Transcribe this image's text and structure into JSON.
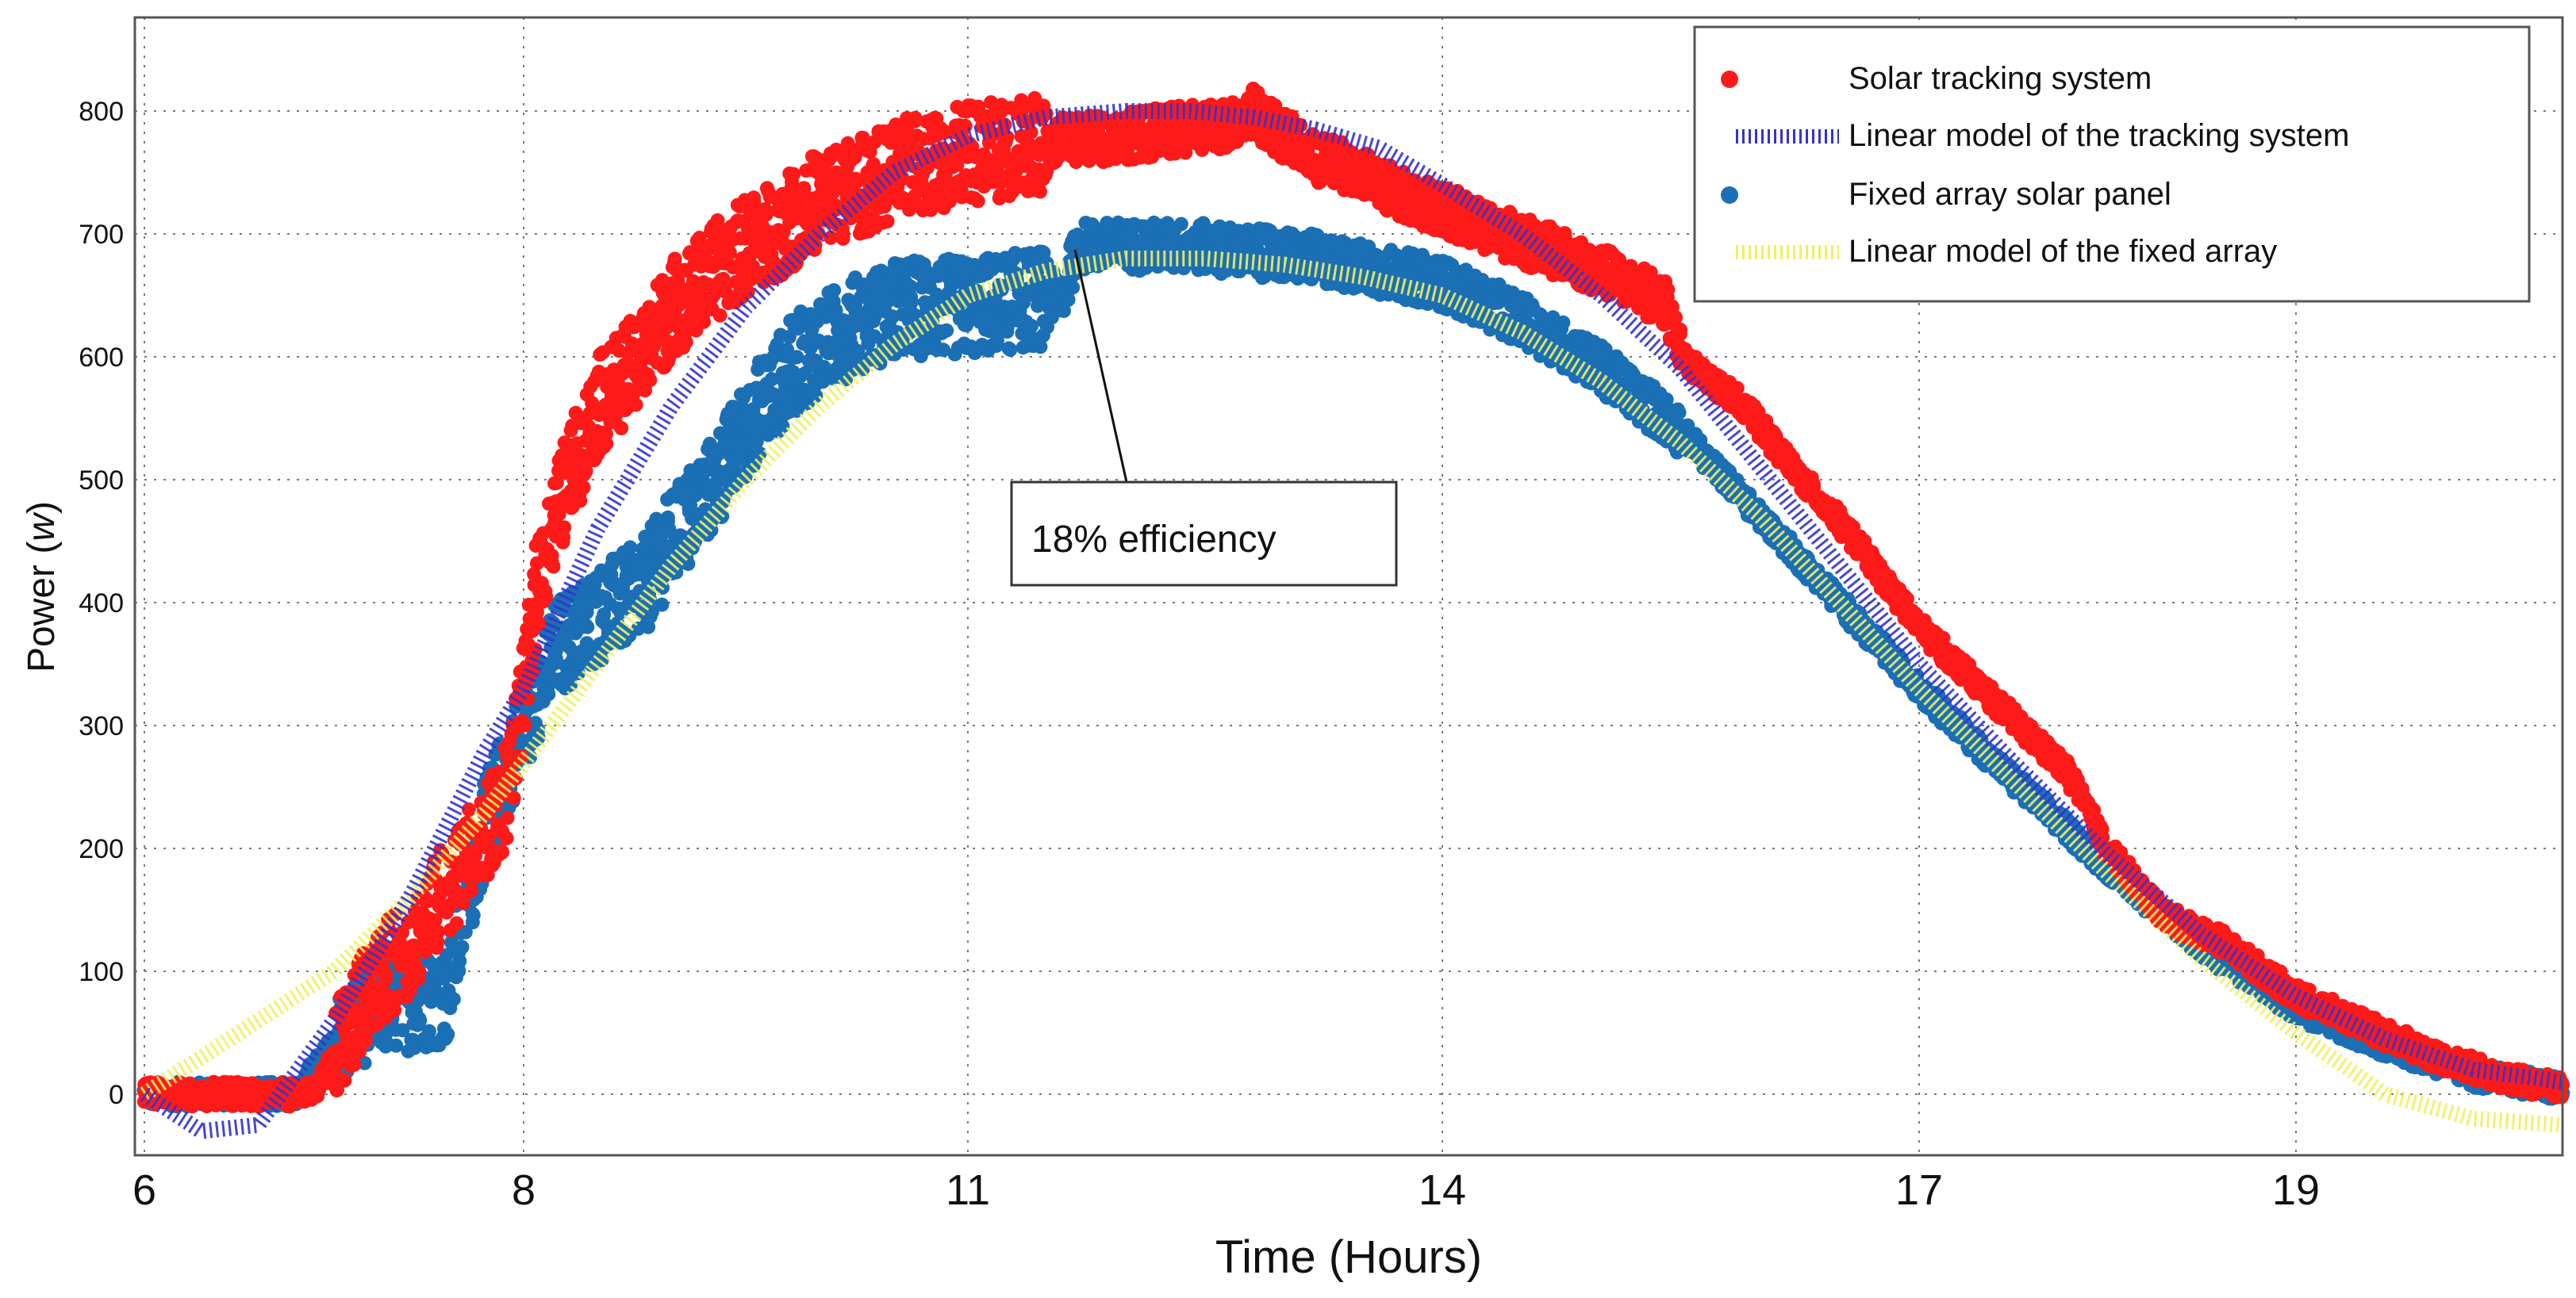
{
  "chart_data": {
    "type": "scatter",
    "title": "",
    "xlabel": "Time (Hours)",
    "ylabel_main": "Power (",
    "ylabel_unit": "w",
    "ylabel_close": ")",
    "xlim": [
      6,
      20.5
    ],
    "ylim": [
      -40,
      850
    ],
    "xticks": [
      6,
      8,
      11,
      14,
      17,
      19
    ],
    "xtick_labels": [
      "6",
      "8",
      "11",
      "14",
      "17",
      "19"
    ],
    "yticks": [
      0,
      100,
      200,
      300,
      400,
      500,
      600,
      700,
      800
    ],
    "ytick_labels": [
      "0",
      "100",
      "200",
      "300",
      "400",
      "500",
      "600",
      "700",
      "800"
    ],
    "grid": true,
    "legend_position": "top-right",
    "annotation": {
      "text": "18% efficiency",
      "target_x": 11.4,
      "target_y": 690
    },
    "series": [
      {
        "name": "Solar tracking system",
        "kind": "scatter",
        "color": "#ff1a1a",
        "x": [
          6.0,
          6.5,
          6.9,
          7.0,
          7.2,
          7.4,
          7.6,
          7.8,
          7.9,
          8.0,
          8.1,
          8.3,
          8.5,
          8.8,
          9.0,
          9.3,
          9.5,
          9.8,
          10.0,
          10.3,
          10.6,
          11.0,
          11.3,
          11.6,
          12.0,
          12.4,
          12.7,
          12.8,
          13.0,
          13.2,
          13.4,
          13.6,
          14.0,
          14.5,
          15.0,
          15.4,
          15.5,
          15.9,
          16.2,
          16.6,
          17.0,
          17.4,
          17.8,
          18.0,
          18.3,
          18.6,
          19.0,
          19.4,
          19.8,
          20.2,
          20.5
        ],
        "y": [
          0,
          0,
          0,
          30,
          90,
          120,
          170,
          210,
          240,
          320,
          420,
          500,
          560,
          600,
          640,
          670,
          690,
          710,
          730,
          740,
          755,
          765,
          770,
          775,
          780,
          785,
          790,
          800,
          780,
          760,
          755,
          740,
          720,
          695,
          670,
          645,
          600,
          560,
          510,
          450,
          380,
          320,
          260,
          200,
          145,
          125,
          80,
          55,
          30,
          12,
          5
        ]
      },
      {
        "name": "Linear model of the tracking system",
        "kind": "line",
        "color": "#3333cc",
        "x": [
          6.0,
          6.3,
          6.6,
          7.0,
          7.4,
          7.8,
          8.0,
          8.5,
          9.0,
          9.5,
          10.0,
          10.5,
          11.0,
          11.5,
          12.0,
          12.4,
          12.8,
          13.2,
          13.6,
          14.0,
          14.5,
          15.0,
          15.5,
          16.0,
          16.5,
          17.0,
          17.5,
          18.0,
          18.5,
          19.0,
          19.5,
          20.0,
          20.5
        ],
        "y": [
          0,
          -30,
          -25,
          60,
          160,
          280,
          330,
          460,
          560,
          640,
          700,
          750,
          780,
          795,
          800,
          800,
          795,
          785,
          770,
          740,
          700,
          650,
          590,
          510,
          430,
          350,
          270,
          195,
          130,
          80,
          45,
          20,
          10
        ]
      },
      {
        "name": "Fixed array solar panel",
        "kind": "scatter",
        "color": "#1b6fb5",
        "x": [
          6.0,
          6.5,
          6.8,
          7.0,
          7.2,
          7.4,
          7.6,
          7.7,
          7.8,
          8.0,
          8.2,
          8.5,
          8.8,
          9.0,
          9.3,
          9.6,
          9.8,
          10.0,
          10.3,
          10.6,
          11.0,
          11.3,
          11.6,
          11.7,
          12.0,
          12.4,
          12.8,
          13.2,
          13.6,
          14.0,
          14.5,
          15.0,
          15.5,
          16.0,
          16.5,
          17.0,
          17.5,
          18.0,
          18.5,
          19.0,
          19.5,
          20.0,
          20.5
        ],
        "y": [
          0,
          0,
          0,
          40,
          70,
          75,
          80,
          160,
          220,
          300,
          360,
          390,
          410,
          450,
          500,
          560,
          590,
          610,
          630,
          640,
          640,
          645,
          650,
          690,
          690,
          690,
          685,
          680,
          670,
          660,
          630,
          590,
          540,
          470,
          400,
          330,
          255,
          185,
          120,
          70,
          40,
          15,
          5
        ]
      },
      {
        "name": "Linear model of the fixed array",
        "kind": "line",
        "color": "#f0f060",
        "x": [
          6.0,
          6.3,
          6.6,
          7.0,
          7.4,
          7.8,
          8.0,
          8.5,
          9.0,
          9.5,
          10.0,
          10.5,
          11.0,
          11.5,
          12.0,
          12.5,
          13.0,
          13.5,
          14.0,
          14.5,
          15.0,
          15.5,
          16.0,
          16.5,
          17.0,
          17.5,
          18.0,
          18.5,
          19.0,
          19.5,
          20.0,
          20.5
        ],
        "y": [
          0,
          30,
          60,
          100,
          160,
          230,
          270,
          350,
          430,
          500,
          560,
          610,
          650,
          670,
          680,
          680,
          675,
          665,
          650,
          620,
          580,
          530,
          470,
          400,
          330,
          255,
          180,
          110,
          50,
          0,
          -20,
          -25
        ]
      }
    ]
  }
}
